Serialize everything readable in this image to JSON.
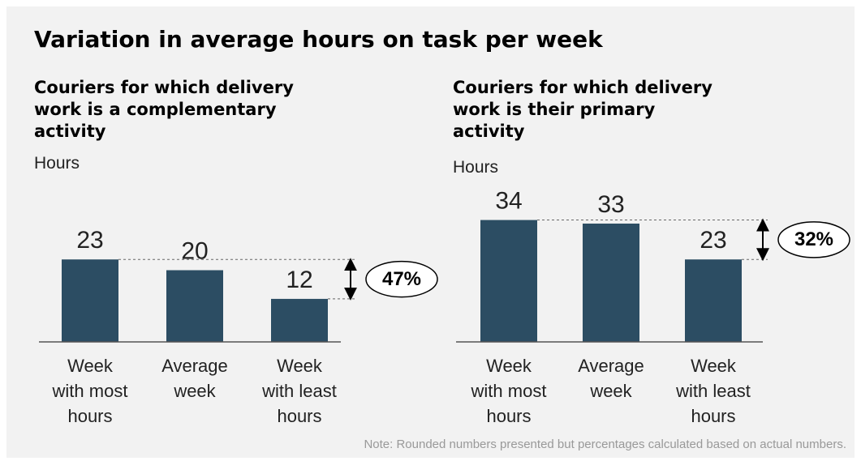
{
  "title": "Variation in average hours on task per week",
  "note": "Note: Rounded numbers presented but percentages calculated based on actual numbers.",
  "chart_data": [
    {
      "type": "bar",
      "title": "Couriers for which delivery\nwork is a complementary\nactivity",
      "y_label": "Hours",
      "categories": [
        "Week\nwith most\nhours",
        "Average\nweek",
        "Week\nwith least\nhours"
      ],
      "values": [
        23,
        20,
        12
      ],
      "color": "#2c4d63",
      "ylim": [
        0,
        40
      ],
      "annotation": "47%"
    },
    {
      "type": "bar",
      "title": "Couriers for which delivery\nwork is their primary\nactivity",
      "y_label": "Hours",
      "categories": [
        "Week\nwith most\nhours",
        "Average\nweek",
        "Week\nwith least\nhours"
      ],
      "values": [
        34,
        33,
        23
      ],
      "color": "#2c4d63",
      "ylim": [
        0,
        40
      ],
      "annotation": "32%"
    }
  ]
}
